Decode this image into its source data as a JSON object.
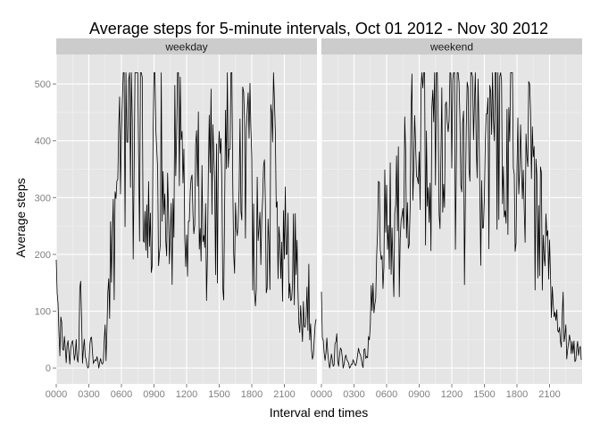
{
  "chart_data": {
    "type": "line",
    "title": "Average steps for 5-minute intervals, Oct 01 2012 - Nov 30 2012",
    "xlabel": "Interval end times",
    "ylabel": "Average steps",
    "x_ticks": [
      "0000",
      "0300",
      "0600",
      "0900",
      "1200",
      "1500",
      "1800",
      "2100"
    ],
    "x_tick_hours": [
      0,
      3,
      6,
      9,
      12,
      15,
      18,
      21
    ],
    "xlim_hours": [
      0,
      24
    ],
    "y_ticks": [
      0,
      100,
      200,
      300,
      400,
      500
    ],
    "ylim": [
      -28,
      552
    ],
    "grid": true,
    "panel_background": "#e5e5e5",
    "strip_background": "#cccccc",
    "line_color": "#000000",
    "panels": [
      {
        "name": "weekday",
        "anchors": [
          [
            0,
            190
          ],
          [
            0.1,
            100
          ],
          [
            0.2,
            60
          ],
          [
            0.35,
            30
          ],
          [
            0.45,
            80
          ],
          [
            0.6,
            20
          ],
          [
            0.75,
            60
          ],
          [
            0.9,
            10
          ],
          [
            1.05,
            40
          ],
          [
            1.25,
            5
          ],
          [
            1.45,
            60
          ],
          [
            1.65,
            5
          ],
          [
            1.85,
            40
          ],
          [
            2.05,
            0
          ],
          [
            2.2,
            180
          ],
          [
            2.4,
            10
          ],
          [
            2.6,
            40
          ],
          [
            2.8,
            0
          ],
          [
            3.0,
            5
          ],
          [
            3.2,
            70
          ],
          [
            3.45,
            0
          ],
          [
            3.7,
            30
          ],
          [
            3.9,
            0
          ],
          [
            4.1,
            20
          ],
          [
            4.3,
            0
          ],
          [
            4.5,
            60
          ],
          [
            4.6,
            20
          ],
          [
            4.8,
            150
          ],
          [
            4.9,
            100
          ],
          [
            5.05,
            220
          ],
          [
            5.2,
            240
          ],
          [
            5.35,
            260
          ],
          [
            5.5,
            280
          ],
          [
            5.6,
            240
          ],
          [
            5.75,
            320
          ],
          [
            5.9,
            300
          ],
          [
            6.05,
            380
          ],
          [
            6.2,
            450
          ],
          [
            6.3,
            470
          ],
          [
            6.45,
            410
          ],
          [
            6.6,
            420
          ],
          [
            6.7,
            360
          ],
          [
            6.85,
            460
          ],
          [
            7.0,
            400
          ],
          [
            7.15,
            430
          ],
          [
            7.3,
            390
          ],
          [
            7.45,
            420
          ],
          [
            7.6,
            480
          ],
          [
            7.75,
            500
          ],
          [
            7.9,
            470
          ],
          [
            8.0,
            200
          ],
          [
            8.15,
            180
          ],
          [
            8.3,
            260
          ],
          [
            8.5,
            300
          ],
          [
            8.65,
            240
          ],
          [
            8.8,
            120
          ],
          [
            8.9,
            510
          ],
          [
            9.05,
            500
          ],
          [
            9.2,
            300
          ],
          [
            9.35,
            260
          ],
          [
            9.5,
            180
          ],
          [
            9.6,
            400
          ],
          [
            9.75,
            320
          ],
          [
            9.9,
            300
          ],
          [
            10.1,
            390
          ],
          [
            10.3,
            230
          ],
          [
            10.5,
            210
          ],
          [
            10.7,
            180
          ],
          [
            10.9,
            320
          ],
          [
            11.1,
            380
          ],
          [
            11.3,
            420
          ],
          [
            11.5,
            350
          ],
          [
            11.7,
            310
          ],
          [
            11.9,
            300
          ],
          [
            12.1,
            270
          ],
          [
            12.3,
            240
          ],
          [
            12.5,
            330
          ],
          [
            12.7,
            240
          ],
          [
            12.9,
            280
          ],
          [
            13.1,
            320
          ],
          [
            13.3,
            200
          ],
          [
            13.5,
            270
          ],
          [
            13.7,
            240
          ],
          [
            13.9,
            110
          ],
          [
            14.1,
            360
          ],
          [
            14.3,
            350
          ],
          [
            14.5,
            310
          ],
          [
            14.7,
            300
          ],
          [
            14.9,
            320
          ],
          [
            15.1,
            300
          ],
          [
            15.3,
            210
          ],
          [
            15.5,
            200
          ],
          [
            15.6,
            370
          ],
          [
            15.7,
            520
          ],
          [
            15.85,
            240
          ],
          [
            16.05,
            470
          ],
          [
            16.25,
            340
          ],
          [
            16.45,
            300
          ],
          [
            16.65,
            230
          ],
          [
            16.85,
            280
          ],
          [
            17.05,
            350
          ],
          [
            17.3,
            410
          ],
          [
            17.55,
            380
          ],
          [
            17.8,
            480
          ],
          [
            18.05,
            310
          ],
          [
            18.25,
            100
          ],
          [
            18.45,
            230
          ],
          [
            18.65,
            260
          ],
          [
            18.85,
            180
          ],
          [
            19.05,
            290
          ],
          [
            19.25,
            300
          ],
          [
            19.45,
            210
          ],
          [
            19.65,
            300
          ],
          [
            19.85,
            340
          ],
          [
            20.05,
            410
          ],
          [
            20.25,
            230
          ],
          [
            20.45,
            270
          ],
          [
            20.65,
            150
          ],
          [
            20.85,
            250
          ],
          [
            21.05,
            200
          ],
          [
            21.25,
            240
          ],
          [
            21.45,
            110
          ],
          [
            21.65,
            80
          ],
          [
            21.85,
            230
          ],
          [
            22.05,
            190
          ],
          [
            22.25,
            140
          ],
          [
            22.45,
            110
          ],
          [
            22.6,
            60
          ],
          [
            22.8,
            140
          ],
          [
            23.0,
            90
          ],
          [
            23.25,
            130
          ],
          [
            23.5,
            30
          ],
          [
            23.75,
            40
          ],
          [
            23.95,
            80
          ]
        ]
      },
      {
        "name": "weekend",
        "anchors": [
          [
            0,
            120
          ],
          [
            0.15,
            40
          ],
          [
            0.35,
            15
          ],
          [
            0.55,
            60
          ],
          [
            0.75,
            0
          ],
          [
            0.95,
            20
          ],
          [
            1.15,
            5
          ],
          [
            1.35,
            60
          ],
          [
            1.55,
            0
          ],
          [
            1.8,
            40
          ],
          [
            2.0,
            0
          ],
          [
            2.3,
            20
          ],
          [
            2.6,
            0
          ],
          [
            2.9,
            10
          ],
          [
            3.2,
            5
          ],
          [
            3.5,
            30
          ],
          [
            3.8,
            0
          ],
          [
            4.0,
            40
          ],
          [
            4.2,
            10
          ],
          [
            4.4,
            60
          ],
          [
            4.6,
            100
          ],
          [
            4.8,
            150
          ],
          [
            5.0,
            110
          ],
          [
            5.2,
            220
          ],
          [
            5.4,
            270
          ],
          [
            5.6,
            170
          ],
          [
            5.8,
            230
          ],
          [
            6.0,
            240
          ],
          [
            6.2,
            190
          ],
          [
            6.4,
            270
          ],
          [
            6.6,
            200
          ],
          [
            6.8,
            260
          ],
          [
            7.0,
            300
          ],
          [
            7.2,
            260
          ],
          [
            7.4,
            330
          ],
          [
            7.6,
            300
          ],
          [
            7.8,
            270
          ],
          [
            8.0,
            160
          ],
          [
            8.2,
            330
          ],
          [
            8.4,
            370
          ],
          [
            8.6,
            390
          ],
          [
            8.8,
            420
          ],
          [
            9.0,
            400
          ],
          [
            9.2,
            470
          ],
          [
            9.4,
            410
          ],
          [
            9.6,
            380
          ],
          [
            9.8,
            300
          ],
          [
            10.0,
            270
          ],
          [
            10.2,
            340
          ],
          [
            10.4,
            380
          ],
          [
            10.6,
            410
          ],
          [
            10.8,
            440
          ],
          [
            11.0,
            360
          ],
          [
            11.2,
            320
          ],
          [
            11.4,
            400
          ],
          [
            11.6,
            470
          ],
          [
            11.8,
            440
          ],
          [
            12.0,
            400
          ],
          [
            12.2,
            460
          ],
          [
            12.4,
            450
          ],
          [
            12.6,
            390
          ],
          [
            12.8,
            340
          ],
          [
            13.0,
            300
          ],
          [
            13.2,
            320
          ],
          [
            13.4,
            380
          ],
          [
            13.6,
            420
          ],
          [
            13.8,
            440
          ],
          [
            14.0,
            390
          ],
          [
            14.2,
            370
          ],
          [
            14.4,
            360
          ],
          [
            14.6,
            300
          ],
          [
            14.8,
            260
          ],
          [
            15.0,
            240
          ],
          [
            15.2,
            320
          ],
          [
            15.4,
            400
          ],
          [
            15.6,
            440
          ],
          [
            15.8,
            470
          ],
          [
            16.0,
            470
          ],
          [
            16.2,
            480
          ],
          [
            16.4,
            450
          ],
          [
            16.6,
            380
          ],
          [
            16.8,
            320
          ],
          [
            17.0,
            290
          ],
          [
            17.2,
            340
          ],
          [
            17.4,
            400
          ],
          [
            17.6,
            420
          ],
          [
            17.8,
            390
          ],
          [
            18.0,
            350
          ],
          [
            18.2,
            360
          ],
          [
            18.4,
            330
          ],
          [
            18.6,
            300
          ],
          [
            18.8,
            260
          ],
          [
            19.0,
            330
          ],
          [
            19.2,
            370
          ],
          [
            19.4,
            300
          ],
          [
            19.6,
            270
          ],
          [
            19.8,
            350
          ],
          [
            20.0,
            300
          ],
          [
            20.2,
            260
          ],
          [
            20.4,
            230
          ],
          [
            20.6,
            200
          ],
          [
            20.8,
            260
          ],
          [
            21.0,
            180
          ],
          [
            21.2,
            130
          ],
          [
            21.4,
            90
          ],
          [
            21.6,
            110
          ],
          [
            21.8,
            60
          ],
          [
            22.0,
            40
          ],
          [
            22.2,
            100
          ],
          [
            22.4,
            80
          ],
          [
            22.6,
            30
          ],
          [
            22.8,
            60
          ],
          [
            23.0,
            20
          ],
          [
            23.2,
            50
          ],
          [
            23.4,
            10
          ],
          [
            23.6,
            40
          ],
          [
            23.8,
            30
          ],
          [
            23.95,
            20
          ]
        ]
      }
    ]
  }
}
